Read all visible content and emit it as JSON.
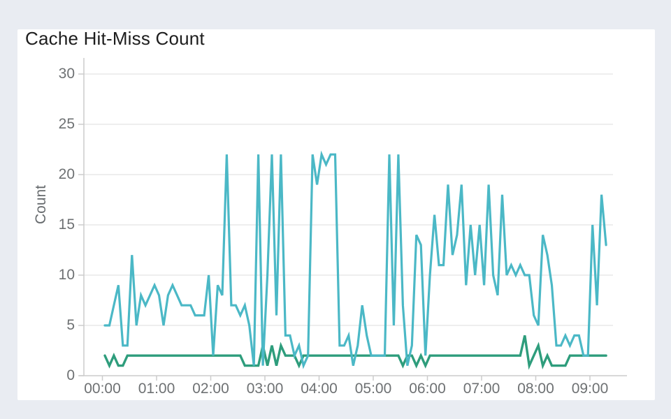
{
  "title": "Cache Hit-Miss Count",
  "y_axis": {
    "title": "Count"
  },
  "colors": {
    "page_background": "#e9ecf2",
    "card_background": "#ffffff",
    "teal_series": "#4bb8c6",
    "green_series": "#2e9d7c",
    "grid_line": "#e8e8e8",
    "axis_line": "#cccccc",
    "tick_text": "#6e7173",
    "title_text": "#1d1d1d"
  },
  "chart_data": {
    "type": "line",
    "title": "Cache Hit-Miss Count",
    "xlabel": "",
    "ylabel": "Count",
    "ylim": [
      0,
      30
    ],
    "y_tick_values": [
      30,
      25,
      20,
      15,
      10,
      5,
      0
    ],
    "y_tick_labels": [
      "30",
      "25",
      "20",
      "15",
      "10",
      "5",
      "0"
    ],
    "x_tick_labels": [
      "00:00",
      "01:00",
      "02:00",
      "03:00",
      "04:00",
      "05:00",
      "06:00",
      "07:00",
      "08:00",
      "09:00"
    ],
    "x_start": "00:00",
    "x_interval_minutes": 5,
    "grid": "horizontal",
    "legend": "none",
    "series": [
      {
        "name": "green-line",
        "color": "#2e9d7c",
        "values": [
          2,
          1,
          2,
          1,
          1,
          2,
          2,
          2,
          2,
          2,
          2,
          2,
          2,
          2,
          2,
          2,
          2,
          2,
          2,
          2,
          2,
          2,
          2,
          2,
          2,
          2,
          2,
          2,
          2,
          2,
          2,
          1,
          1,
          1,
          1,
          3,
          1,
          3,
          1,
          3,
          2,
          2,
          2,
          1,
          2,
          2,
          2,
          2,
          2,
          2,
          2,
          2,
          2,
          2,
          2,
          2,
          2,
          2,
          2,
          2,
          2,
          2,
          2,
          2,
          2,
          2,
          1,
          2,
          2,
          1,
          2,
          1,
          2,
          2,
          2,
          2,
          2,
          2,
          2,
          2,
          2,
          2,
          2,
          2,
          2,
          2,
          2,
          2,
          2,
          2,
          2,
          2,
          2,
          4,
          1,
          2,
          3,
          1,
          2,
          1,
          1,
          1,
          1,
          2,
          2,
          2,
          2,
          2,
          2,
          2,
          2,
          2
        ]
      },
      {
        "name": "teal-line",
        "color": "#4bb8c6",
        "values": [
          5,
          5,
          7,
          9,
          3,
          3,
          12,
          5,
          8,
          7,
          8,
          9,
          8,
          5,
          8,
          9,
          8,
          7,
          7,
          7,
          6,
          6,
          6,
          10,
          2,
          9,
          8,
          22,
          7,
          7,
          6,
          7,
          5,
          1,
          22,
          1,
          10,
          22,
          6,
          22,
          4,
          4,
          2,
          3,
          1,
          2,
          22,
          19,
          22,
          21,
          22,
          22,
          3,
          3,
          4,
          1,
          3,
          7,
          4,
          2,
          2,
          2,
          2,
          22,
          5,
          22,
          7,
          1,
          3,
          14,
          13,
          2,
          10,
          16,
          11,
          11,
          19,
          12,
          14,
          19,
          9,
          15,
          10,
          15,
          9,
          19,
          10,
          8,
          18,
          10,
          11,
          10,
          11,
          10,
          10,
          6,
          5,
          14,
          12,
          9,
          3,
          3,
          4,
          3,
          4,
          4,
          2,
          2,
          15,
          7,
          18,
          13
        ]
      }
    ]
  }
}
